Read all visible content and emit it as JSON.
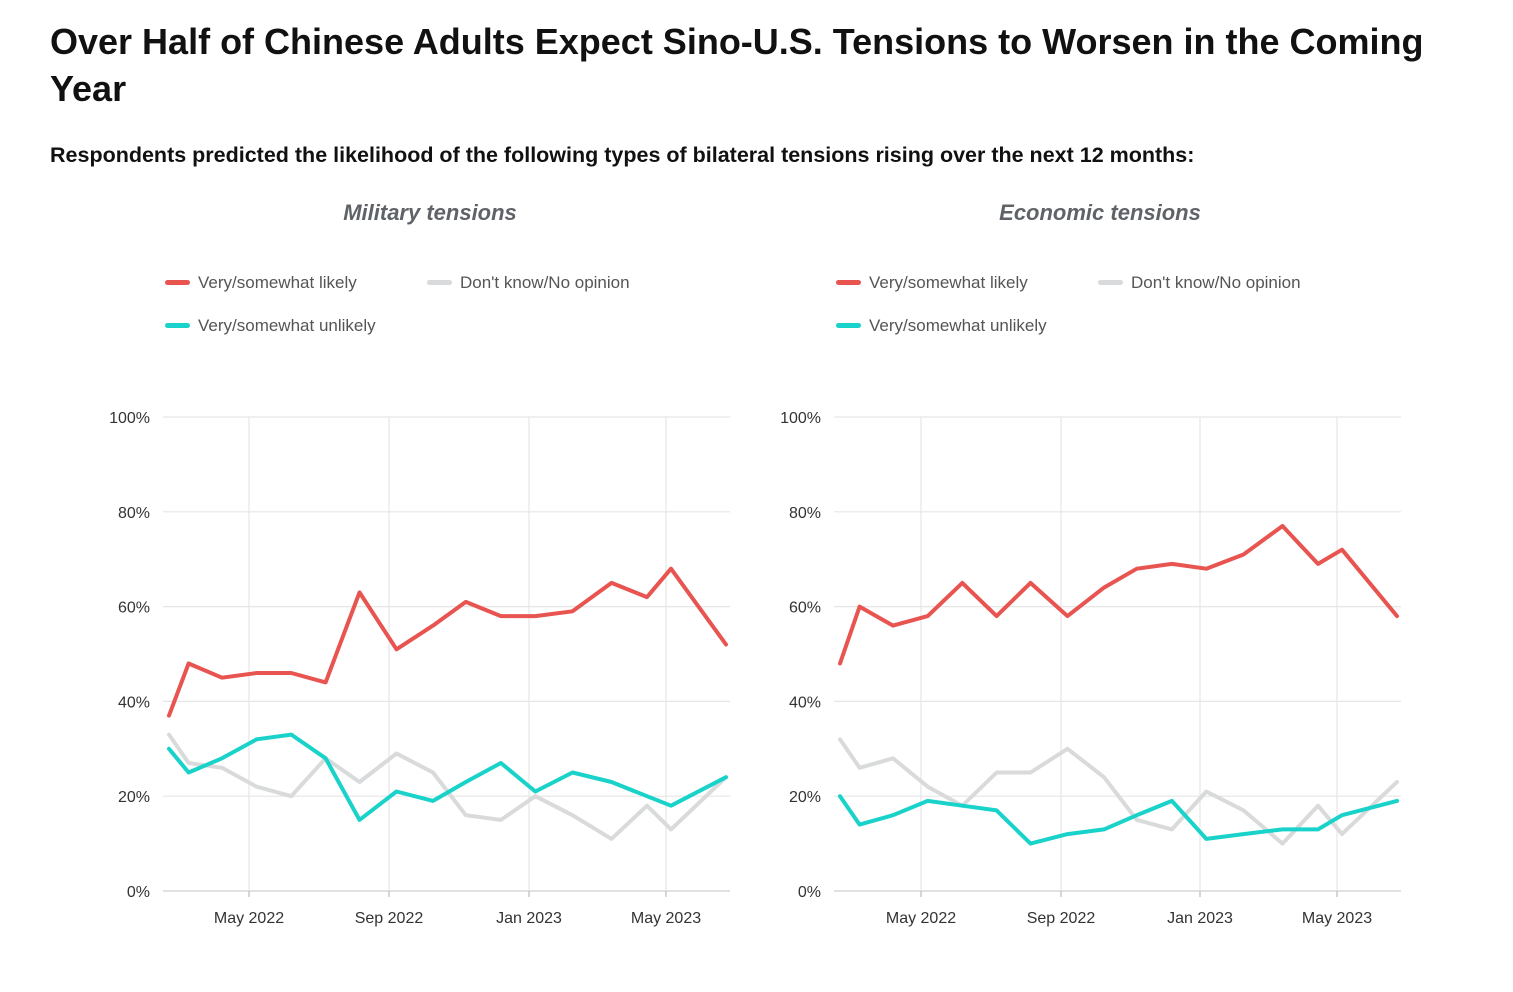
{
  "title": "Over Half of Chinese Adults Expect Sino-U.S. Tensions to Worsen in the Coming Year",
  "subtitle": "Respondents predicted the likelihood of the following types of bilateral tensions rising over the next 12 months:",
  "colors": {
    "likely": "#e85450",
    "unlikely": "#19d2c9",
    "dontknow": "#d9dadb",
    "grid": "#e6e6e6"
  },
  "chart_data": [
    {
      "type": "line",
      "title": "Military tensions",
      "xlabel": "",
      "ylabel": "",
      "ylim": [
        0,
        100
      ],
      "y_ticks": [
        "0%",
        "20%",
        "40%",
        "60%",
        "80%",
        "100%"
      ],
      "x_ticks": [
        "May 2022",
        "Sep 2022",
        "Jan 2023",
        "May 2023"
      ],
      "x": [
        "Mar 2022",
        "Mar 2022",
        "Apr 2022",
        "May 2022",
        "Jun 2022",
        "Jul 2022",
        "Aug 2022",
        "Sep 2022",
        "Oct 2022",
        "Nov 2022",
        "Dec 2022",
        "Jan 2023",
        "Feb 2023",
        "Mar 2023",
        "Apr 2023",
        "May 2023",
        "Jun 2023"
      ],
      "series": [
        {
          "name": "Very/somewhat likely",
          "key": "likely",
          "values": [
            37,
            48,
            45,
            46,
            46,
            44,
            63,
            51,
            56,
            61,
            58,
            58,
            59,
            65,
            62,
            68,
            52
          ]
        },
        {
          "name": "Don't know/No opinion",
          "key": "dontknow",
          "values": [
            33,
            27,
            26,
            22,
            20,
            28,
            23,
            29,
            25,
            16,
            15,
            20,
            16,
            11,
            18,
            13,
            24
          ]
        },
        {
          "name": "Very/somewhat unlikely",
          "key": "unlikely",
          "values": [
            30,
            25,
            28,
            32,
            33,
            28,
            15,
            21,
            19,
            23,
            27,
            21,
            25,
            23,
            20,
            18,
            24
          ]
        }
      ]
    },
    {
      "type": "line",
      "title": "Economic tensions",
      "xlabel": "",
      "ylabel": "",
      "ylim": [
        0,
        100
      ],
      "y_ticks": [
        "0%",
        "20%",
        "40%",
        "60%",
        "80%",
        "100%"
      ],
      "x_ticks": [
        "May 2022",
        "Sep 2022",
        "Jan 2023",
        "May 2023"
      ],
      "x": [
        "Mar 2022",
        "Mar 2022",
        "Apr 2022",
        "May 2022",
        "Jun 2022",
        "Jul 2022",
        "Aug 2022",
        "Sep 2022",
        "Oct 2022",
        "Nov 2022",
        "Dec 2022",
        "Jan 2023",
        "Feb 2023",
        "Mar 2023",
        "Apr 2023",
        "May 2023",
        "Jun 2023"
      ],
      "series": [
        {
          "name": "Very/somewhat likely",
          "key": "likely",
          "values": [
            48,
            60,
            56,
            58,
            65,
            58,
            65,
            58,
            64,
            68,
            69,
            68,
            71,
            77,
            69,
            72,
            58
          ]
        },
        {
          "name": "Don't know/No opinion",
          "key": "dontknow",
          "values": [
            32,
            26,
            28,
            22,
            18,
            25,
            25,
            30,
            24,
            15,
            13,
            21,
            17,
            10,
            18,
            12,
            23
          ]
        },
        {
          "name": "Very/somewhat unlikely",
          "key": "unlikely",
          "values": [
            20,
            14,
            16,
            19,
            18,
            17,
            10,
            12,
            13,
            16,
            19,
            11,
            12,
            13,
            13,
            16,
            19
          ]
        }
      ]
    }
  ]
}
